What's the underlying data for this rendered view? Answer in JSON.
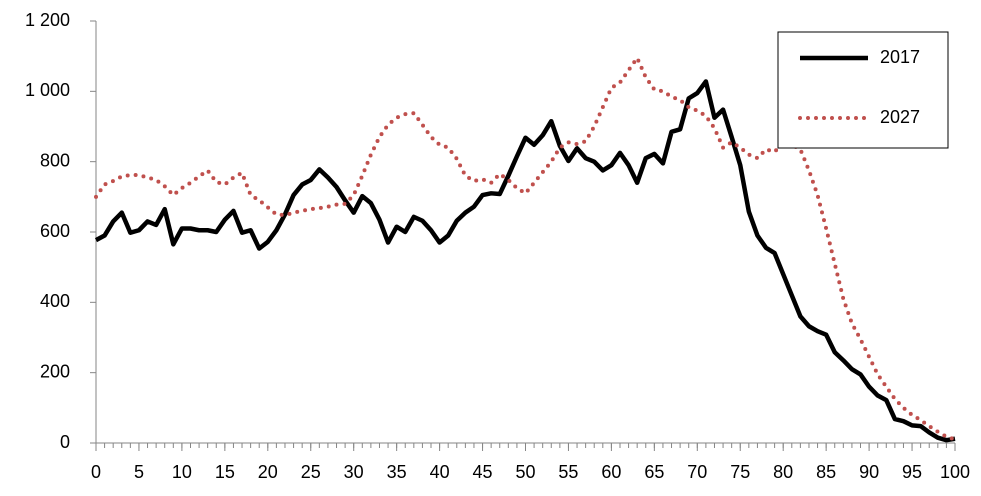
{
  "chart_data": {
    "type": "line",
    "x": [
      0,
      1,
      2,
      3,
      4,
      5,
      6,
      7,
      8,
      9,
      10,
      11,
      12,
      13,
      14,
      15,
      16,
      17,
      18,
      19,
      20,
      21,
      22,
      23,
      24,
      25,
      26,
      27,
      28,
      29,
      30,
      31,
      32,
      33,
      34,
      35,
      36,
      37,
      38,
      39,
      40,
      41,
      42,
      43,
      44,
      45,
      46,
      47,
      48,
      49,
      50,
      51,
      52,
      53,
      54,
      55,
      56,
      57,
      58,
      59,
      60,
      61,
      62,
      63,
      64,
      65,
      66,
      67,
      68,
      69,
      70,
      71,
      72,
      73,
      74,
      75,
      76,
      77,
      78,
      79,
      80,
      81,
      82,
      83,
      84,
      85,
      86,
      87,
      88,
      89,
      90,
      91,
      92,
      93,
      94,
      95,
      96,
      97,
      98,
      99,
      100
    ],
    "series": [
      {
        "name": "2017",
        "color": "#000000",
        "style": "solid",
        "values": [
          577,
          590,
          630,
          655,
          598,
          605,
          630,
          620,
          665,
          565,
          610,
          610,
          605,
          605,
          600,
          635,
          660,
          598,
          605,
          553,
          572,
          605,
          650,
          705,
          735,
          748,
          778,
          755,
          728,
          690,
          655,
          702,
          682,
          635,
          570,
          615,
          600,
          643,
          632,
          605,
          570,
          590,
          632,
          655,
          672,
          705,
          710,
          708,
          760,
          815,
          868,
          848,
          875,
          915,
          845,
          802,
          838,
          810,
          800,
          775,
          790,
          825,
          790,
          740,
          810,
          822,
          795,
          885,
          892,
          980,
          995,
          1028,
          925,
          948,
          870,
          790,
          658,
          590,
          555,
          540,
          480,
          420,
          360,
          332,
          318,
          308,
          258,
          235,
          210,
          195,
          160,
          135,
          122,
          68,
          62,
          50,
          48,
          30,
          15,
          8,
          12
        ]
      },
      {
        "name": "2027",
        "color": "#c0504d",
        "style": "dotted",
        "values": [
          700,
          735,
          745,
          758,
          762,
          762,
          755,
          748,
          730,
          705,
          725,
          740,
          758,
          775,
          742,
          735,
          755,
          768,
          705,
          690,
          670,
          650,
          648,
          655,
          660,
          665,
          668,
          672,
          678,
          680,
          705,
          760,
          820,
          870,
          905,
          925,
          935,
          938,
          905,
          870,
          848,
          840,
          808,
          760,
          745,
          750,
          740,
          765,
          748,
          725,
          710,
          740,
          770,
          800,
          840,
          855,
          850,
          858,
          900,
          955,
          1010,
          1025,
          1060,
          1095,
          1040,
          1005,
          1000,
          985,
          975,
          955,
          945,
          930,
          895,
          840,
          855,
          840,
          820,
          810,
          835,
          828,
          855,
          848,
          835,
          775,
          705,
          610,
          510,
          410,
          340,
          295,
          245,
          195,
          160,
          125,
          100,
          80,
          65,
          48,
          32,
          18,
          10
        ]
      }
    ],
    "xlim": [
      0,
      100
    ],
    "xticks": [
      0,
      5,
      10,
      15,
      20,
      25,
      30,
      35,
      40,
      45,
      50,
      55,
      60,
      65,
      70,
      75,
      80,
      85,
      90,
      95,
      100
    ],
    "ylim": [
      0,
      1200
    ],
    "yticks": [
      0,
      200,
      400,
      600,
      800,
      {
        "value": 1000,
        "label": "1 000"
      },
      {
        "value": 1200,
        "label": "1 200"
      }
    ],
    "legend": "top-right"
  }
}
